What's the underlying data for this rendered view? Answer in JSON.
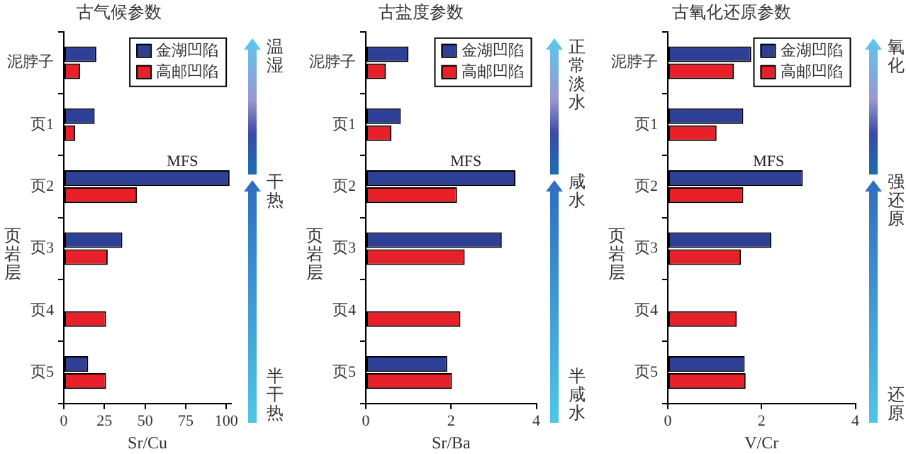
{
  "chart_data": [
    {
      "type": "bar",
      "orientation": "horizontal",
      "title": "古气候参数",
      "xlabel": "Sr/Cu",
      "ylabel": "页岩层",
      "categories": [
        "泥脖子",
        "页1",
        "页2",
        "页3",
        "页4",
        "页5"
      ],
      "series": [
        {
          "name": "金湖凹陷",
          "color": "#2e3f96",
          "values": [
            20,
            19,
            102,
            36,
            null,
            15
          ]
        },
        {
          "name": "高邮凹陷",
          "color": "#e8202a",
          "values": [
            10,
            7,
            45,
            27,
            26,
            26
          ]
        }
      ],
      "xlim": [
        0,
        103
      ],
      "xticks": [
        0,
        25,
        50,
        75,
        100
      ],
      "grid": false,
      "legend": "top right",
      "annotations": [
        {
          "text": "MFS",
          "x": 73,
          "y": "页2"
        },
        "温湿",
        "干热",
        "半干热"
      ]
    },
    {
      "type": "bar",
      "orientation": "horizontal",
      "title": "古盐度参数",
      "xlabel": "Sr/Ba",
      "ylabel": "页岩层",
      "categories": [
        "泥脖子",
        "页1",
        "页2",
        "页3",
        "页4",
        "页5"
      ],
      "series": [
        {
          "name": "金湖凹陷",
          "color": "#2e3f96",
          "values": [
            1.0,
            0.82,
            3.51,
            3.19,
            null,
            1.91
          ]
        },
        {
          "name": "高邮凹陷",
          "color": "#e8202a",
          "values": [
            0.47,
            0.6,
            2.14,
            2.32,
            2.22,
            2.02
          ]
        }
      ],
      "xlim": [
        0,
        4
      ],
      "xticks": [
        0,
        2,
        4
      ],
      "grid": false,
      "legend": "top right",
      "annotations": [
        {
          "text": "MFS",
          "x": 2.35,
          "y": "页2"
        },
        "正常淡水",
        "咸水",
        "半咸水"
      ]
    },
    {
      "type": "bar",
      "orientation": "horizontal",
      "title": "古氧化还原参数",
      "xlabel": "V/Cr",
      "ylabel": "页岩层",
      "categories": [
        "泥脖子",
        "页1",
        "页2",
        "页3",
        "页4",
        "页5"
      ],
      "series": [
        {
          "name": "金湖凹陷",
          "color": "#2e3f96",
          "values": [
            1.78,
            1.61,
            2.88,
            2.21,
            null,
            1.64
          ]
        },
        {
          "name": "高邮凹陷",
          "color": "#e8202a",
          "values": [
            1.41,
            1.04,
            1.61,
            1.56,
            1.47,
            1.66
          ]
        }
      ],
      "xlim": [
        0,
        4
      ],
      "xticks": [
        0,
        2,
        4
      ],
      "grid": false,
      "legend": "top right",
      "annotations": [
        {
          "text": "MFS",
          "x": 2.15,
          "y": "页2"
        },
        "氧化",
        "强还原",
        "还原"
      ]
    }
  ]
}
